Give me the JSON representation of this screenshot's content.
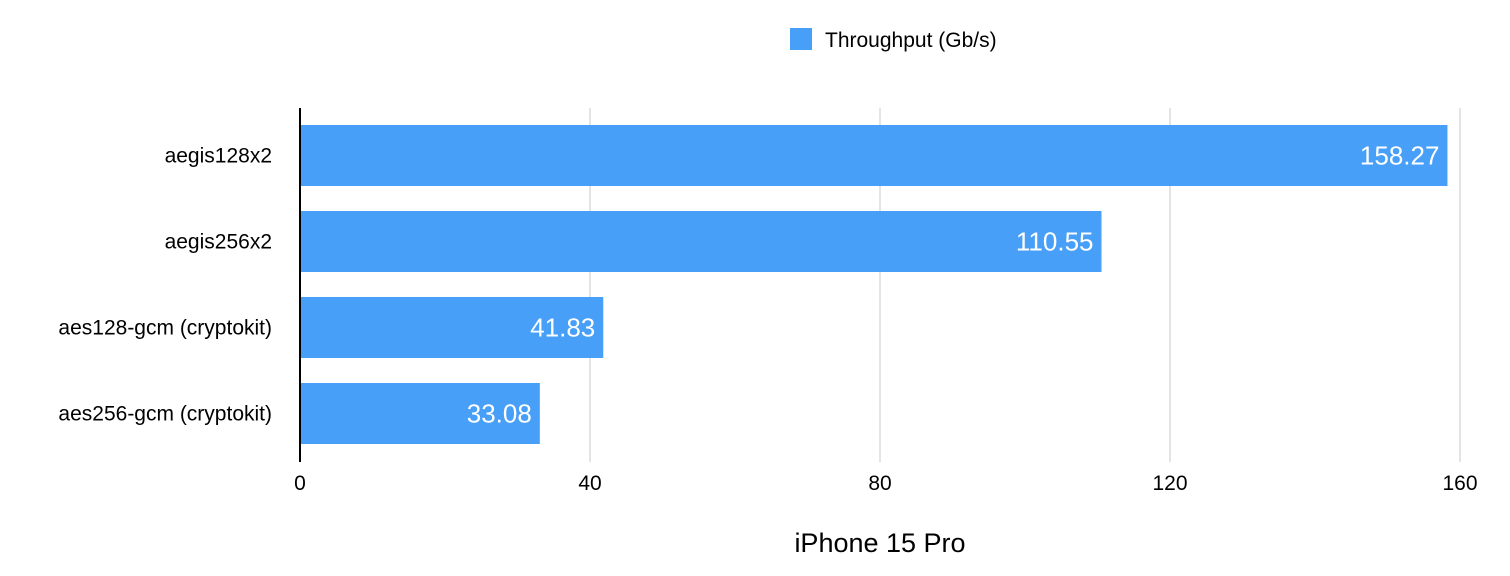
{
  "chart_data": {
    "type": "bar",
    "orientation": "horizontal",
    "categories": [
      "aegis128x2",
      "aegis256x2",
      "aes128-gcm (cryptokit)",
      "aes256-gcm (cryptokit)"
    ],
    "series": [
      {
        "name": "Throughput (Gb/s)",
        "values": [
          158.27,
          110.55,
          41.83,
          33.08
        ],
        "color": "#479ff8"
      }
    ],
    "data_labels": [
      "158.27",
      "110.55",
      "41.83",
      "33.08"
    ],
    "xlabel": "iPhone 15 Pro",
    "ylabel": "",
    "xlim": [
      0,
      160
    ],
    "xticks": [
      0,
      40,
      80,
      120,
      160
    ],
    "xtick_labels": [
      "0",
      "40",
      "80",
      "120",
      "160"
    ],
    "grid": "vertical",
    "legend_position": "top-center",
    "colors": {
      "bar": "#479ff8",
      "grid": "#c8c8c8",
      "axis": "#000000",
      "data_label": "#ffffff"
    }
  }
}
